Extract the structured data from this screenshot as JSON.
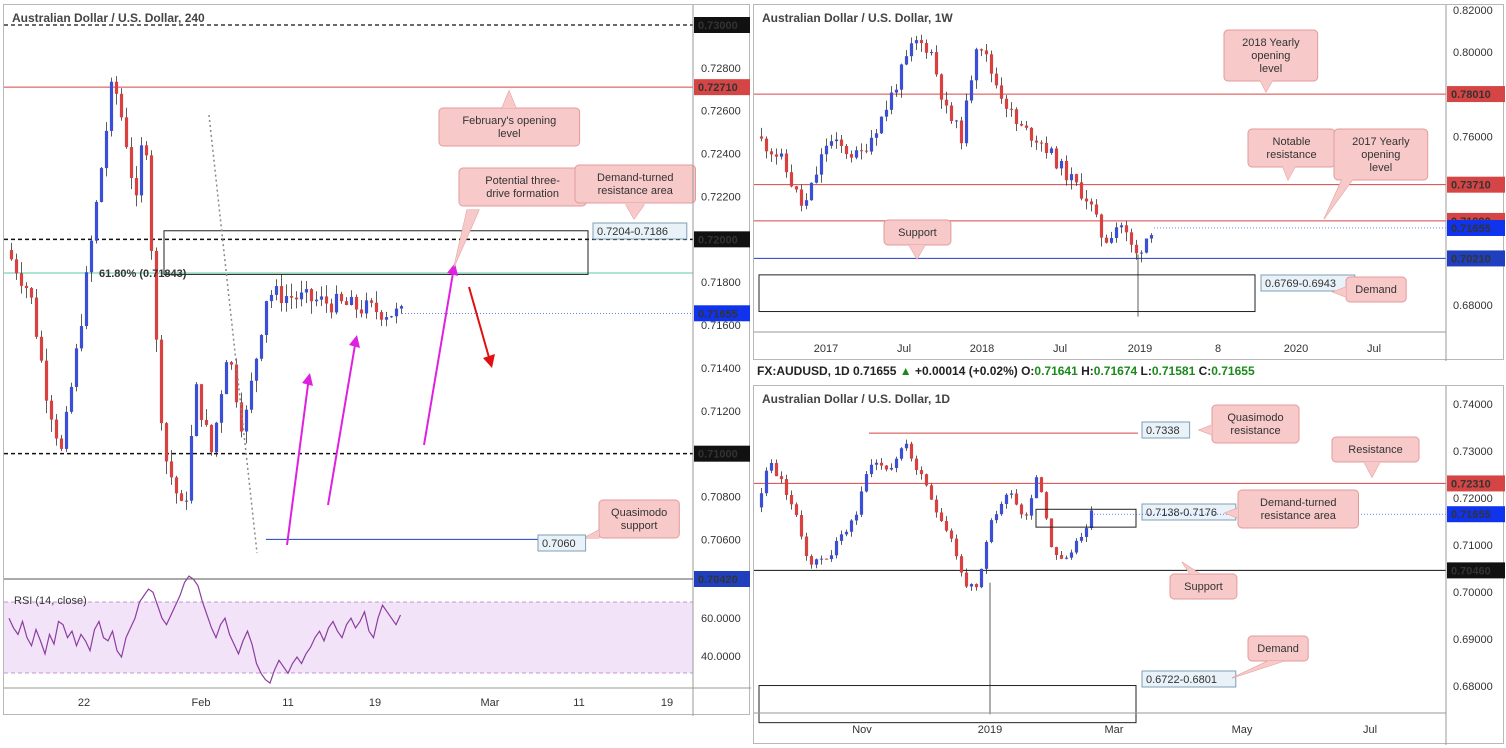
{
  "panels": {
    "h4": {
      "title": "Australian Dollar / U.S. Dollar, 240",
      "y_labels": [
        "0.73000",
        "0.72800",
        "0.72710",
        "0.72600",
        "0.72400",
        "0.72200",
        "0.72000",
        "0.71800",
        "0.71655",
        "0.71600",
        "0.71400",
        "0.71200",
        "0.71000",
        "0.70800",
        "0.70600",
        "0.70420"
      ],
      "x_labels": [
        "22",
        "Feb",
        "11",
        "19",
        "Mar",
        "11",
        "19"
      ],
      "annotations": {
        "feb_open": "February's opening level",
        "three_drive": "Potential three-drive formation",
        "demand_turned": "Demand-turned resistance area",
        "quasimodo": "Quasimodo support",
        "zone_label": "0.7204-0.7186",
        "fib_label": "61.80%  (0.71843)",
        "level_7060": "0.7060"
      },
      "rsi": {
        "label": "RSI (14, close)",
        "y_labels": [
          "60.0000",
          "40.0000"
        ]
      }
    },
    "weekly": {
      "title": "Australian Dollar / U.S. Dollar, 1W",
      "y_labels": [
        "0.82000",
        "0.80000",
        "0.78010",
        "0.76000",
        "0.73710",
        "0.71990",
        "0.71655",
        "0.70210",
        "0.68000"
      ],
      "x_labels": [
        "2017",
        "Jul",
        "2018",
        "Jul",
        "2019",
        "8",
        "2020",
        "Jul"
      ],
      "annotations": {
        "yearly_2018": "2018 Yearly opening level",
        "notable_res": "Notable resistance",
        "yearly_2017": "2017 Yearly opening level",
        "support": "Support",
        "demand": "Demand",
        "zone_label": "0.6769-0.6943"
      }
    },
    "daily": {
      "ohlc": {
        "symbol": "FX:AUDUSD, 1D",
        "close": "0.71655",
        "change": "+0.00014 (+0.02%)",
        "o": "0.71641",
        "h": "0.71674",
        "l": "0.71581",
        "c": "0.71655"
      },
      "title": "Australian Dollar / U.S. Dollar, 1D",
      "y_labels": [
        "0.74000",
        "0.73000",
        "0.72310",
        "0.72000",
        "0.71655",
        "0.71000",
        "0.70460",
        "0.70000",
        "0.69000",
        "0.68000"
      ],
      "x_labels": [
        "Nov",
        "2019",
        "Mar",
        "May",
        "Jul"
      ],
      "annotations": {
        "quasimodo_res": "Quasimodo resistance",
        "resistance": "Resistance",
        "demand_turned": "Demand-turned resistance area",
        "support": "Support",
        "demand": "Demand",
        "level_7338": "0.7338",
        "zone_label": "0.7138-0.7176",
        "demand_zone_label": "0.6722-0.6801"
      }
    }
  },
  "colors": {
    "bull": "#3b4fd6",
    "bear": "#d94040",
    "resistance": "#d64545",
    "support": "#1f3fbf",
    "price_tag": "#1033ee",
    "callout_fill": "#f7c9c9",
    "callout_border": "#e39a9a",
    "magenta": "#e020e0",
    "arrow_red": "#e01010",
    "fib": "#5fc9a6",
    "rsi_fill": "#f3e3f8",
    "rsi_line": "#8a3fa0"
  },
  "chart_data": [
    {
      "type": "candlestick",
      "title": "Australian Dollar / U.S. Dollar, 240",
      "x_ticks": [
        "22",
        "Feb",
        "11",
        "19",
        "Mar",
        "11",
        "19"
      ],
      "ylim": [
        0.7042,
        0.731
      ],
      "levels": {
        "resistance": 0.7271,
        "round_numbers": [
          0.73,
          0.72,
          0.71
        ],
        "quasimodo_support": 0.706,
        "fib_61_8": 0.71843,
        "current_price": 0.71655,
        "zone": [
          0.7186,
          0.7204
        ]
      },
      "indicator": {
        "name": "RSI (14, close)",
        "levels": [
          30,
          70
        ],
        "ylim": [
          30,
          70
        ]
      }
    },
    {
      "type": "candlestick",
      "title": "Australian Dollar / U.S. Dollar, 1W",
      "x_ticks": [
        "2017",
        "Jul",
        "2018",
        "Jul",
        "2019",
        "8",
        "2020",
        "Jul"
      ],
      "ylim": [
        0.668,
        0.82
      ],
      "levels": {
        "yearly_2018": 0.7801,
        "notable_resistance": 0.7371,
        "yearly_2017": 0.7199,
        "support": 0.7021,
        "current_price": 0.71655,
        "demand_zone": [
          0.6769,
          0.6943
        ]
      }
    },
    {
      "type": "candlestick",
      "title": "Australian Dollar / U.S. Dollar, 1D",
      "x_ticks": [
        "Nov",
        "2019",
        "Mar",
        "May",
        "Jul"
      ],
      "ylim": [
        0.672,
        0.741
      ],
      "levels": {
        "quasimodo_resistance": 0.7338,
        "resistance": 0.7231,
        "support": 0.7046,
        "current_price": 0.71655,
        "demand_turned_zone": [
          0.7138,
          0.7176
        ],
        "demand_zone": [
          0.6722,
          0.6801
        ]
      }
    }
  ]
}
